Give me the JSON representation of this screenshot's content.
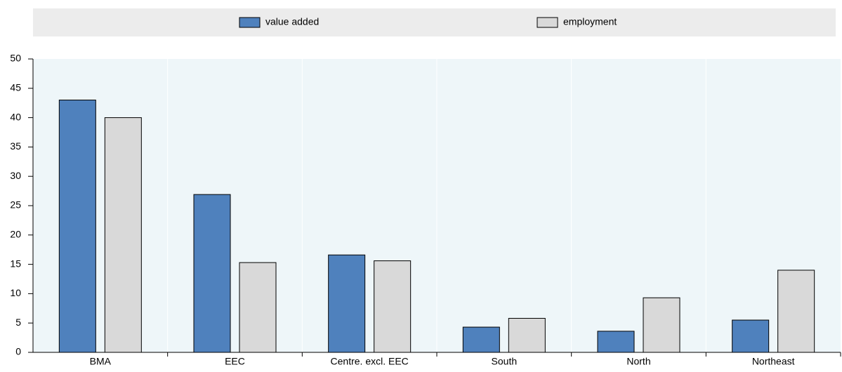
{
  "chart_data": {
    "type": "bar",
    "categories": [
      "BMA",
      "EEC",
      "Centre. excl. EEC",
      "South",
      "North",
      "Northeast"
    ],
    "series": [
      {
        "name": "value added",
        "color": "#4f81bd",
        "values": [
          43,
          26.9,
          16.6,
          4.3,
          3.6,
          5.5
        ]
      },
      {
        "name": "employment",
        "color": "#d9d9d9",
        "values": [
          40,
          15.3,
          15.6,
          5.8,
          9.3,
          14.0
        ]
      }
    ],
    "ylim": [
      0,
      50
    ],
    "yticks": [
      0,
      5,
      10,
      15,
      20,
      25,
      30,
      35,
      40,
      45,
      50
    ],
    "legend": "top"
  }
}
